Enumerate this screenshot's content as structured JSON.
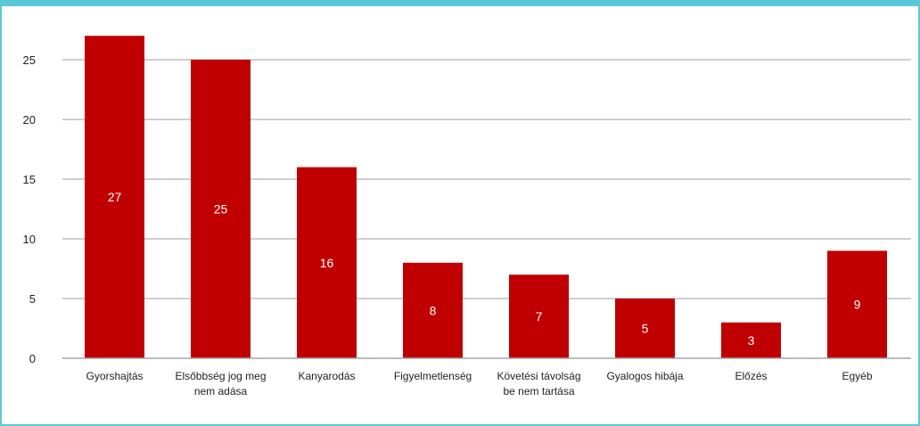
{
  "chart_data": {
    "type": "bar",
    "title": "",
    "xlabel": "",
    "ylabel": "",
    "categories": [
      [
        "Gyorshajtás"
      ],
      [
        "Elsőbbség jog meg",
        "nem adása"
      ],
      [
        "Kanyarodás"
      ],
      [
        "Figyelmetlenség"
      ],
      [
        "Követési távolság",
        "be nem tartása"
      ],
      [
        "Gyalogos hibája"
      ],
      [
        "Előzés"
      ],
      [
        "Egyéb"
      ]
    ],
    "values": [
      27,
      25,
      16,
      8,
      7,
      5,
      3,
      9
    ],
    "ylim": [
      0,
      25
    ],
    "yticks": [
      0,
      5,
      10,
      15,
      20,
      25
    ],
    "grid": true,
    "legend": "none",
    "colors": {
      "bar": "#c00000",
      "grid": "#bfbfbf",
      "axis": "#a6a6a6",
      "frame": "#5bc8d8"
    }
  }
}
